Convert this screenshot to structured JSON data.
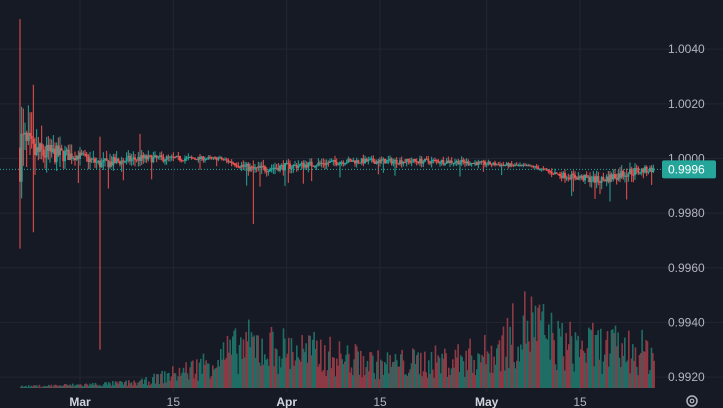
{
  "colors": {
    "background": "#161a25",
    "grid": "#232632",
    "up": "#26a69a",
    "down": "#ef5350",
    "volume_up": "#1f6e66",
    "volume_down": "#8e3a45",
    "last_price_line": "#26a69a",
    "last_price_tag": "#26a69a",
    "tick_text": "#b2b5be"
  },
  "icons": {
    "settings": "gear-icon"
  },
  "chart_data": {
    "type": "candlestick",
    "title": "",
    "xlabel": "",
    "ylabel": "",
    "x_range": [
      "2025-02-17",
      "2025-05-27"
    ],
    "ylim": [
      0.9916,
      1.0058
    ],
    "yticks": [
      "1.0040",
      "1.0020",
      "1.0000",
      "0.9980",
      "0.9960",
      "0.9940",
      "0.9920"
    ],
    "top_partial_tick": "1.0060",
    "xticks": [
      {
        "label": "Mar",
        "date": "2025-03-01",
        "month": true
      },
      {
        "label": "15",
        "date": "2025-03-15",
        "month": false
      },
      {
        "label": "Apr",
        "date": "2025-04-01",
        "month": true
      },
      {
        "label": "15",
        "date": "2025-04-15",
        "month": false
      },
      {
        "label": "May",
        "date": "2025-05-01",
        "month": true
      },
      {
        "label": "15",
        "date": "2025-05-15",
        "month": false
      }
    ],
    "last_price": "0.9996",
    "grid": true,
    "segments": [
      {
        "date": "2025-02-20",
        "base": 1.0004,
        "noise": 0.0025,
        "spike_hi": 1.0051,
        "spike_lo": 0.9967
      },
      {
        "date": "2025-02-22",
        "base": 1.0002,
        "noise": 0.001,
        "spike_hi": 1.0027,
        "spike_lo": 0.9973
      },
      {
        "date": "2025-03-01",
        "base": 1.0001,
        "noise": 0.0003
      },
      {
        "date": "2025-03-04",
        "base": 0.9998,
        "noise": 0.0004,
        "spike_hi": 1.0008,
        "spike_lo": 0.993
      },
      {
        "date": "2025-03-10",
        "base": 1.0,
        "noise": 0.0003,
        "spike_hi": 1.0009
      },
      {
        "date": "2025-03-22",
        "base": 1.0,
        "noise": 0.0001
      },
      {
        "date": "2025-03-27",
        "base": 0.9996,
        "noise": 0.0003,
        "spike_lo": 0.9982
      },
      {
        "date": "2025-04-10",
        "base": 0.9999,
        "noise": 0.0002
      },
      {
        "date": "2025-04-25",
        "base": 0.9999,
        "noise": 0.0002
      },
      {
        "date": "2025-05-08",
        "base": 0.9997,
        "noise": 0.0001
      },
      {
        "date": "2025-05-12",
        "base": 0.9994,
        "noise": 0.0002
      },
      {
        "date": "2025-05-18",
        "base": 0.9992,
        "noise": 0.0003,
        "spike_lo": 0.9987
      },
      {
        "date": "2025-05-22",
        "base": 0.9995,
        "noise": 0.0004,
        "spike_lo": 0.9985
      },
      {
        "date": "2025-05-26",
        "base": 0.9996,
        "noise": 0.0002
      }
    ],
    "volume": [
      {
        "date": "2025-02-20",
        "level": 0.02
      },
      {
        "date": "2025-03-01",
        "level": 0.04
      },
      {
        "date": "2025-03-10",
        "level": 0.07
      },
      {
        "date": "2025-03-18",
        "level": 0.25
      },
      {
        "date": "2025-03-22",
        "level": 0.4
      },
      {
        "date": "2025-03-26",
        "level": 0.55
      },
      {
        "date": "2025-04-05",
        "level": 0.45
      },
      {
        "date": "2025-04-15",
        "level": 0.3
      },
      {
        "date": "2025-04-25",
        "level": 0.35
      },
      {
        "date": "2025-05-02",
        "level": 0.45
      },
      {
        "date": "2025-05-07",
        "level": 0.85
      },
      {
        "date": "2025-05-12",
        "level": 0.55
      },
      {
        "date": "2025-05-20",
        "level": 0.5
      },
      {
        "date": "2025-05-26",
        "level": 0.45
      }
    ]
  }
}
